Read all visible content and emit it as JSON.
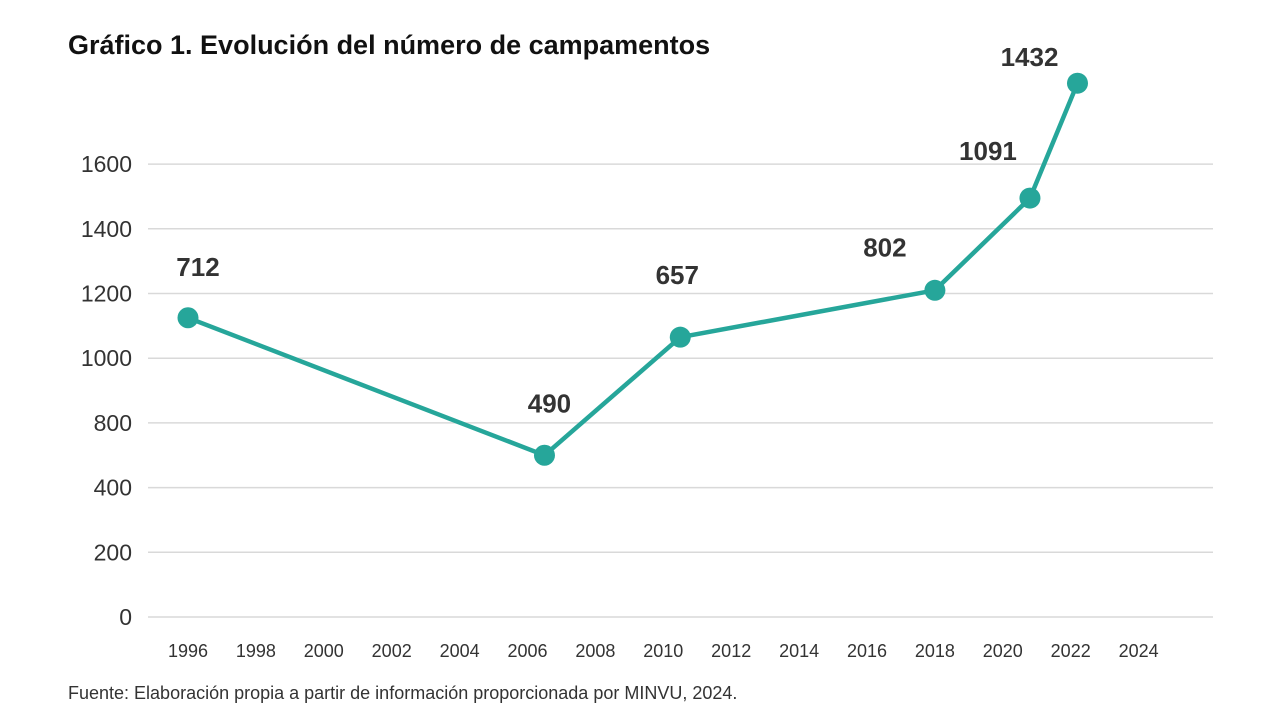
{
  "chart_data": {
    "type": "line",
    "title": "Gráfico 1. Evolución del número de campamentos",
    "source": "Fuente: Elaboración propia a partir de información proporcionada por MINVU, 2024.",
    "xlabel": "",
    "ylabel": "",
    "y_ticks": [
      "0",
      "200",
      "400",
      "800",
      "1000",
      "1200",
      "1400",
      "1600"
    ],
    "x_ticks": [
      "1996",
      "1998",
      "2000",
      "2002",
      "2004",
      "2006",
      "2008",
      "2010",
      "2012",
      "2014",
      "2016",
      "2018",
      "2020",
      "2022",
      "2024"
    ],
    "x": [
      1996,
      2006.5,
      2010.5,
      2018,
      2020.8,
      2022.2
    ],
    "values": [
      712,
      490,
      657,
      802,
      1091,
      1432
    ],
    "plotted_y": [
      925,
      500,
      865,
      1010,
      1295,
      1650
    ],
    "grid": true,
    "colors": {
      "line": "#26a69a",
      "grid": "#d9d9d9"
    }
  }
}
